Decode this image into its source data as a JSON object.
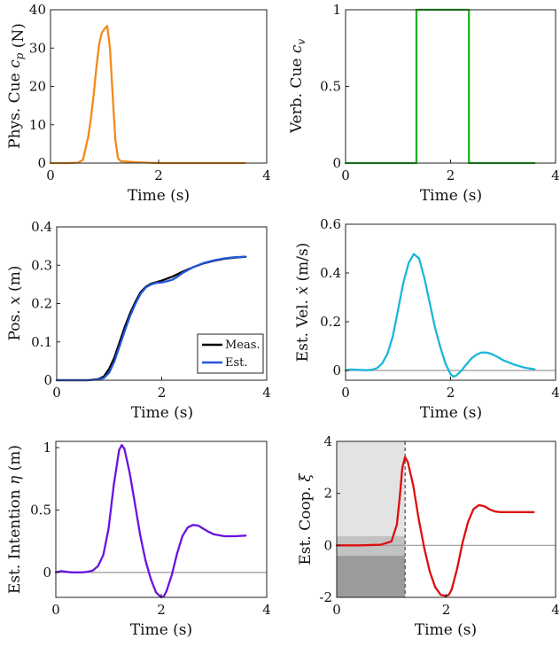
{
  "chart_data": [
    {
      "id": "phys",
      "type": "line",
      "xlabel": "Time (s)",
      "ylabel": "Phys. Cue c_p (N)",
      "ylabel_parts": [
        {
          "t": "Phys.  Cue "
        },
        {
          "t": "c",
          "i": true
        },
        {
          "t": "p",
          "sub": true,
          "i": true
        },
        {
          "t": " (N)"
        }
      ],
      "xlim": [
        0,
        4
      ],
      "ylim": [
        0,
        40
      ],
      "xticks": [
        0,
        2,
        4
      ],
      "yticks": [
        0,
        10,
        20,
        30,
        40
      ],
      "grid": false,
      "series": [
        {
          "color": "#f28a1a",
          "x": [
            0,
            0.3,
            0.5,
            0.6,
            0.7,
            0.75,
            0.8,
            0.85,
            0.9,
            0.95,
            1.0,
            1.05,
            1.1,
            1.15,
            1.2,
            1.25,
            1.3,
            1.4,
            1.6,
            2.0,
            3.6
          ],
          "y": [
            0,
            0,
            0.1,
            0.8,
            7,
            12,
            18,
            25,
            31,
            34,
            35,
            35.8,
            30,
            18,
            6,
            1.2,
            0.5,
            0.4,
            0.2,
            0,
            0
          ]
        }
      ]
    },
    {
      "id": "verb",
      "type": "line",
      "xlabel": "Time (s)",
      "ylabel": "Verb. Cue c_v",
      "ylabel_parts": [
        {
          "t": "Verb.  Cue "
        },
        {
          "t": "c",
          "i": true
        },
        {
          "t": "v",
          "sub": true,
          "i": true
        }
      ],
      "xlim": [
        0,
        4
      ],
      "ylim": [
        0,
        1
      ],
      "xticks": [
        0,
        2,
        4
      ],
      "yticks": [
        0,
        0.5,
        1
      ],
      "grid": false,
      "series": [
        {
          "color": "#1fb01f",
          "x": [
            0,
            1.35,
            1.35,
            2.35,
            2.35,
            3.6
          ],
          "y": [
            0,
            0,
            1,
            1,
            0,
            0
          ]
        }
      ]
    },
    {
      "id": "pos",
      "type": "line",
      "xlabel": "Time (s)",
      "ylabel": "Pos. x (m)",
      "ylabel_parts": [
        {
          "t": "Pos. "
        },
        {
          "t": "x",
          "i": true
        },
        {
          "t": " (m)"
        }
      ],
      "xlim": [
        0,
        4
      ],
      "ylim": [
        0,
        0.4
      ],
      "xticks": [
        0,
        2,
        4
      ],
      "yticks": [
        0,
        0.1,
        0.2,
        0.3,
        0.4
      ],
      "grid": false,
      "legend": "bottom-right",
      "series": [
        {
          "name": "Meas.",
          "color": "#000000",
          "x": [
            0,
            0.6,
            0.8,
            0.9,
            1.0,
            1.1,
            1.2,
            1.3,
            1.4,
            1.5,
            1.6,
            1.7,
            1.8,
            1.9,
            2.0,
            2.2,
            2.4,
            2.6,
            2.8,
            3.0,
            3.2,
            3.4,
            3.6
          ],
          "y": [
            0,
            0,
            0.003,
            0.01,
            0.03,
            0.06,
            0.1,
            0.14,
            0.175,
            0.205,
            0.23,
            0.244,
            0.252,
            0.256,
            0.26,
            0.27,
            0.283,
            0.295,
            0.305,
            0.312,
            0.317,
            0.32,
            0.322
          ]
        },
        {
          "name": "Est.",
          "color": "#2356d8",
          "x": [
            0,
            0.6,
            0.8,
            0.9,
            1.0,
            1.1,
            1.2,
            1.3,
            1.4,
            1.5,
            1.6,
            1.7,
            1.8,
            1.9,
            2.0,
            2.1,
            2.2,
            2.3,
            2.4,
            2.6,
            2.8,
            3.0,
            3.2,
            3.4,
            3.6
          ],
          "y": [
            0,
            0,
            0.002,
            0.006,
            0.02,
            0.05,
            0.09,
            0.13,
            0.168,
            0.2,
            0.226,
            0.242,
            0.25,
            0.254,
            0.255,
            0.258,
            0.262,
            0.27,
            0.28,
            0.295,
            0.306,
            0.313,
            0.318,
            0.321,
            0.322
          ]
        }
      ]
    },
    {
      "id": "vel",
      "type": "line",
      "xlabel": "Time (s)",
      "ylabel": "Est. Vel. ẋ (m/s)",
      "ylabel_parts": [
        {
          "t": "Est.  Vel. "
        },
        {
          "t": "ẋ",
          "i": true
        },
        {
          "t": " (m/s)"
        }
      ],
      "xlim": [
        0,
        4
      ],
      "ylim": [
        -0.04,
        0.6
      ],
      "xticks": [
        0,
        2,
        4
      ],
      "yticks": [
        0,
        0.2,
        0.4,
        0.6
      ],
      "grid": false,
      "zero_line": true,
      "series": [
        {
          "color": "#1ab6dc",
          "x": [
            0,
            0.1,
            0.2,
            0.4,
            0.5,
            0.6,
            0.7,
            0.8,
            0.9,
            1.0,
            1.1,
            1.2,
            1.3,
            1.4,
            1.5,
            1.6,
            1.7,
            1.8,
            1.9,
            2.0,
            2.05,
            2.1,
            2.2,
            2.3,
            2.4,
            2.5,
            2.6,
            2.7,
            2.8,
            2.9,
            3.0,
            3.2,
            3.4,
            3.6
          ],
          "y": [
            0,
            0.004,
            0.003,
            0.001,
            0.003,
            0.01,
            0.03,
            0.07,
            0.14,
            0.25,
            0.36,
            0.44,
            0.478,
            0.46,
            0.38,
            0.28,
            0.18,
            0.1,
            0.03,
            -0.015,
            -0.025,
            -0.022,
            -0.002,
            0.025,
            0.05,
            0.066,
            0.074,
            0.073,
            0.066,
            0.055,
            0.042,
            0.025,
            0.012,
            0.005
          ]
        }
      ]
    },
    {
      "id": "int",
      "type": "line",
      "xlabel": "Time (s)",
      "ylabel": "Est. Intention η (m)",
      "ylabel_parts": [
        {
          "t": "Est.  Intention "
        },
        {
          "t": "η",
          "i": true
        },
        {
          "t": " (m)"
        }
      ],
      "xlim": [
        0,
        4
      ],
      "ylim": [
        -0.2,
        1.05
      ],
      "xticks": [
        0,
        2,
        4
      ],
      "yticks": [
        0,
        0.5,
        1
      ],
      "grid": false,
      "zero_line": true,
      "series": [
        {
          "color": "#6a12e0",
          "x": [
            0,
            0.1,
            0.2,
            0.3,
            0.4,
            0.5,
            0.6,
            0.7,
            0.8,
            0.9,
            1.0,
            1.1,
            1.2,
            1.25,
            1.3,
            1.4,
            1.5,
            1.6,
            1.7,
            1.8,
            1.9,
            2.0,
            2.05,
            2.1,
            2.2,
            2.3,
            2.4,
            2.5,
            2.6,
            2.7,
            2.8,
            2.9,
            3.0,
            3.2,
            3.4,
            3.6
          ],
          "y": [
            0,
            0.01,
            0.005,
            0,
            0,
            0,
            0.005,
            0.015,
            0.05,
            0.14,
            0.35,
            0.7,
            0.98,
            1.02,
            0.99,
            0.8,
            0.55,
            0.3,
            0.1,
            -0.05,
            -0.16,
            -0.2,
            -0.19,
            -0.15,
            -0.02,
            0.15,
            0.29,
            0.36,
            0.38,
            0.375,
            0.35,
            0.325,
            0.305,
            0.29,
            0.29,
            0.295
          ]
        }
      ]
    },
    {
      "id": "coop",
      "type": "line",
      "xlabel": "Time (s)",
      "ylabel": "Est. Coop. ξ",
      "ylabel_parts": [
        {
          "t": "Est.  Coop.  "
        },
        {
          "t": "ξ",
          "i": true
        }
      ],
      "xlim": [
        0,
        4
      ],
      "ylim": [
        -2,
        4
      ],
      "xticks": [
        0,
        2,
        4
      ],
      "yticks": [
        -2,
        0,
        2,
        4
      ],
      "grid": false,
      "zero_line": true,
      "vline": 1.25,
      "regions": [
        {
          "x0": 0,
          "x1": 1.25,
          "y0": 0,
          "y1": 4,
          "color": "#e3e3e3"
        },
        {
          "x0": 0,
          "x1": 1.25,
          "y0": -0.4,
          "y1": 0.35,
          "color": "#c2c2c2"
        },
        {
          "x0": 0,
          "x1": 1.25,
          "y0": -2,
          "y1": -0.4,
          "color": "#9b9b9b"
        }
      ],
      "series": [
        {
          "color": "#dd0f0f",
          "x": [
            0,
            0.4,
            0.8,
            1.0,
            1.1,
            1.15,
            1.2,
            1.25,
            1.3,
            1.4,
            1.5,
            1.6,
            1.7,
            1.8,
            1.9,
            2.0,
            2.05,
            2.1,
            2.2,
            2.3,
            2.4,
            2.5,
            2.6,
            2.7,
            2.8,
            2.9,
            3.0,
            3.2,
            3.4,
            3.6
          ],
          "y": [
            0,
            0,
            0.02,
            0.15,
            0.8,
            1.8,
            3.0,
            3.4,
            3.2,
            2.3,
            1.0,
            -0.1,
            -1.0,
            -1.6,
            -1.9,
            -1.95,
            -1.9,
            -1.7,
            -0.9,
            0.1,
            0.9,
            1.4,
            1.55,
            1.5,
            1.38,
            1.3,
            1.28,
            1.28,
            1.28,
            1.28
          ]
        }
      ]
    }
  ]
}
